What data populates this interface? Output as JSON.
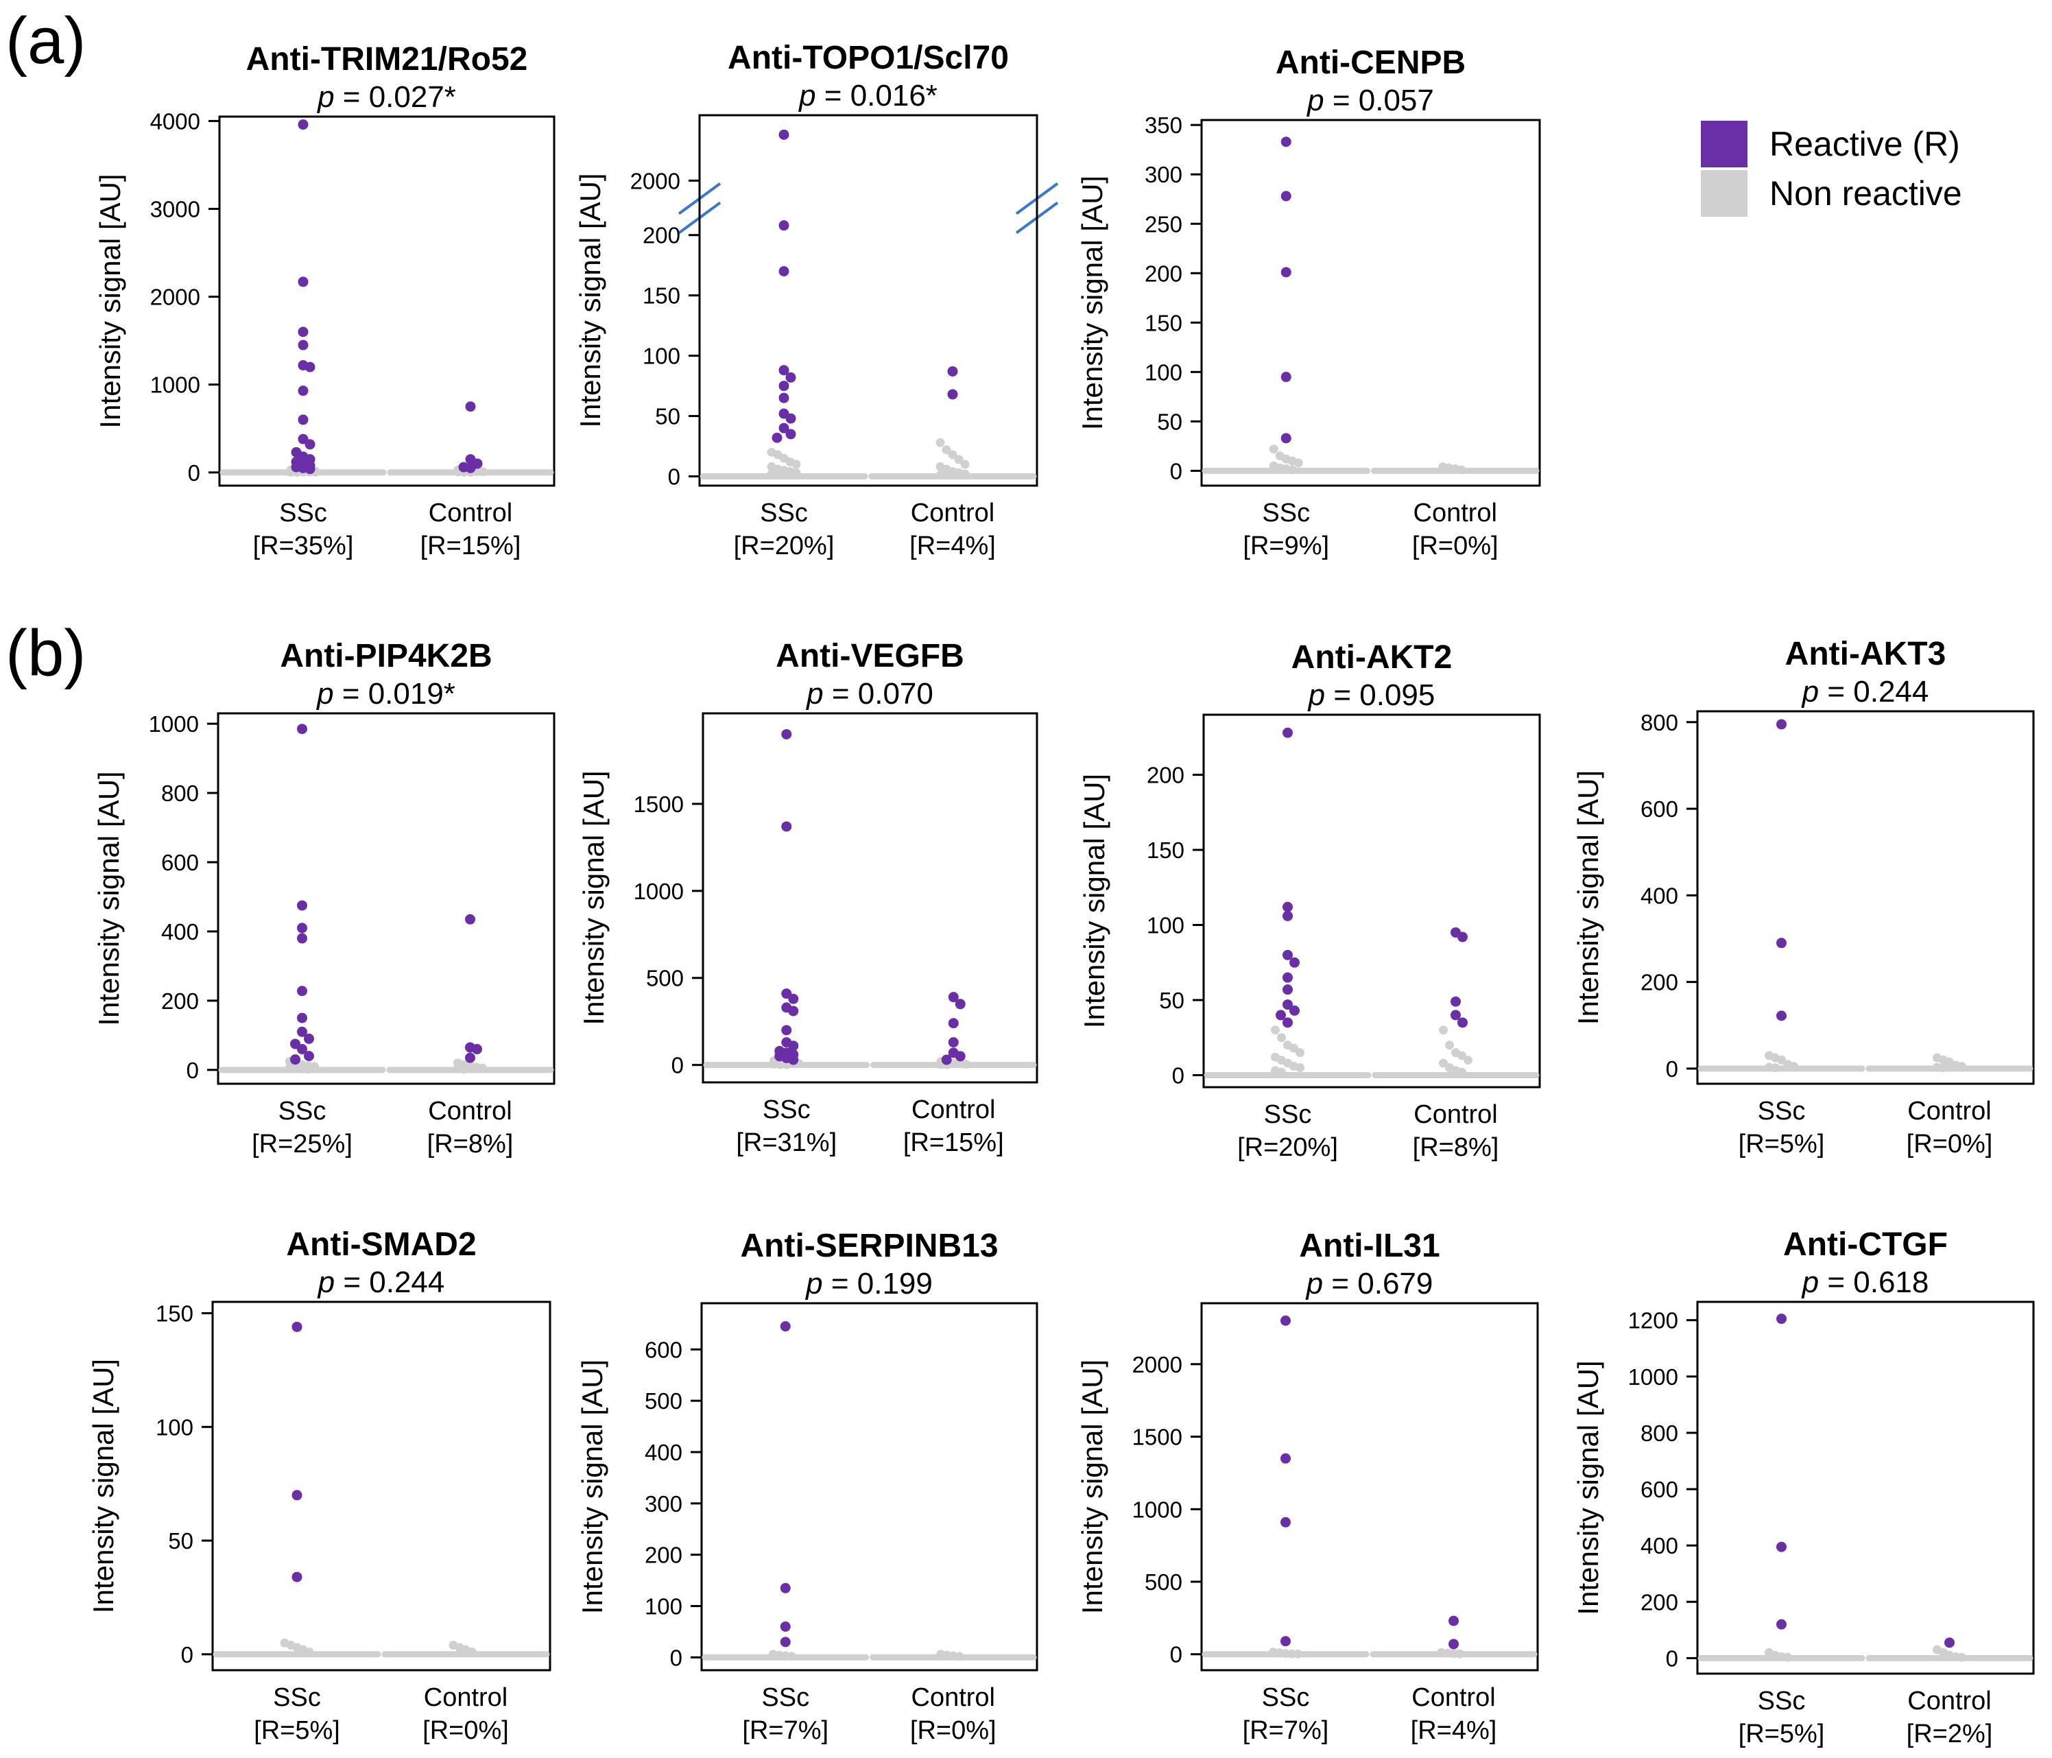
{
  "figure": {
    "panel_labels": [
      "(a)",
      "(b)"
    ],
    "legend": {
      "reactive_label": "Reactive (R)",
      "nonreactive_label": "Non reactive",
      "reactive_color": "#6a2fa6",
      "nonreactive_color": "#d0d0d0"
    }
  },
  "chart_data": [
    {
      "type": "scatter",
      "title": "Anti-TRIM21/Ro52",
      "p_label": "p",
      "p_value": "= 0.027*",
      "ylabel": "Intensity signal [AU]",
      "ylim": [
        -150,
        4050
      ],
      "yticks": [
        0,
        1000,
        2000,
        3000,
        4000
      ],
      "groups": [
        {
          "name": "SSc",
          "reactive_label": "[R=35%]",
          "reactive": [
            3960,
            2170,
            1600,
            1450,
            1220,
            1200,
            930,
            600,
            380,
            320,
            230,
            180,
            150,
            120,
            100,
            80,
            60,
            50,
            40
          ],
          "nonreactive": [
            30,
            25,
            20,
            15,
            12,
            10,
            8,
            6,
            5,
            4,
            3,
            2
          ]
        },
        {
          "name": "Control",
          "reactive_label": "[R=15%]",
          "reactive": [
            750,
            150,
            100,
            60,
            50
          ],
          "nonreactive": [
            30,
            20,
            15,
            10,
            8,
            5,
            4,
            3
          ]
        }
      ]
    },
    {
      "type": "scatter",
      "title": "Anti-TOPO1/Scl70",
      "p_label": "p",
      "p_value": "= 0.016*",
      "ylabel": "Intensity signal [AU]",
      "axis_break": true,
      "break_segments": [
        {
          "range": [
            0,
            210
          ],
          "ticks": [
            0,
            50,
            100,
            150,
            200
          ]
        },
        {
          "range": [
            1950,
            2220
          ],
          "ticks": [
            2000
          ]
        }
      ],
      "groups": [
        {
          "name": "SSc",
          "reactive_label": "[R=20%]",
          "reactive": [
            2180,
            208,
            170,
            88,
            82,
            75,
            65,
            52,
            48,
            40,
            35,
            32
          ],
          "nonreactive": [
            20,
            18,
            15,
            12,
            10,
            8,
            6,
            5,
            4,
            3,
            2,
            1
          ]
        },
        {
          "name": "Control",
          "reactive_label": "[R=4%]",
          "reactive": [
            87,
            68
          ],
          "nonreactive": [
            28,
            22,
            18,
            14,
            10,
            8,
            6,
            4,
            3,
            2,
            1
          ]
        }
      ]
    },
    {
      "type": "scatter",
      "title": "Anti-CENPB",
      "p_label": "p",
      "p_value": "= 0.057",
      "ylabel": "Intensity signal [AU]",
      "ylim": [
        -15,
        355
      ],
      "yticks": [
        0,
        50,
        100,
        150,
        200,
        250,
        300,
        350
      ],
      "groups": [
        {
          "name": "SSc",
          "reactive_label": "[R=9%]",
          "reactive": [
            333,
            278,
            201,
            95,
            33
          ],
          "nonreactive": [
            22,
            15,
            12,
            10,
            8,
            5,
            3,
            2,
            1
          ]
        },
        {
          "name": "Control",
          "reactive_label": "[R=0%]",
          "reactive": [],
          "nonreactive": [
            4,
            3,
            2,
            1
          ]
        }
      ]
    },
    {
      "type": "scatter",
      "title": "Anti-PIP4K2B",
      "p_label": "p",
      "p_value": "= 0.019*",
      "ylabel": "Intensity signal [AU]",
      "ylim": [
        -40,
        1030
      ],
      "yticks": [
        0,
        200,
        400,
        600,
        800,
        1000
      ],
      "groups": [
        {
          "name": "SSc",
          "reactive_label": "[R=25%]",
          "reactive": [
            985,
            475,
            410,
            380,
            228,
            150,
            110,
            90,
            75,
            60,
            40,
            30
          ],
          "nonreactive": [
            25,
            20,
            15,
            12,
            10,
            8,
            5,
            3,
            2
          ]
        },
        {
          "name": "Control",
          "reactive_label": "[R=8%]",
          "reactive": [
            435,
            65,
            60,
            35
          ],
          "nonreactive": [
            20,
            15,
            10,
            8,
            5,
            3,
            2
          ]
        }
      ]
    },
    {
      "type": "scatter",
      "title": "Anti-VEGFB",
      "p_label": "p",
      "p_value": "= 0.070",
      "ylabel": "Intensity signal [AU]",
      "ylim": [
        -100,
        2020
      ],
      "yticks": [
        0,
        500,
        1000,
        1500
      ],
      "groups": [
        {
          "name": "SSc",
          "reactive_label": "[R=31%]",
          "reactive": [
            1900,
            1370,
            410,
            380,
            330,
            310,
            200,
            130,
            110,
            80,
            70,
            60,
            50,
            40,
            30
          ],
          "nonreactive": [
            25,
            20,
            15,
            10,
            8,
            5,
            3,
            2
          ]
        },
        {
          "name": "Control",
          "reactive_label": "[R=15%]",
          "reactive": [
            390,
            350,
            240,
            130,
            70,
            50,
            30
          ],
          "nonreactive": [
            20,
            15,
            10,
            8,
            5,
            3,
            2
          ]
        }
      ]
    },
    {
      "type": "scatter",
      "title": "Anti-AKT2",
      "p_label": "p",
      "p_value": "= 0.095",
      "ylabel": "Intensity signal [AU]",
      "ylim": [
        -8,
        240
      ],
      "yticks": [
        0,
        50,
        100,
        150,
        200
      ],
      "groups": [
        {
          "name": "SSc",
          "reactive_label": "[R=20%]",
          "reactive": [
            228,
            112,
            106,
            80,
            75,
            65,
            57,
            47,
            43,
            40,
            35
          ],
          "nonreactive": [
            30,
            25,
            20,
            18,
            15,
            12,
            10,
            8,
            6,
            5,
            3,
            2
          ]
        },
        {
          "name": "Control",
          "reactive_label": "[R=8%]",
          "reactive": [
            95,
            92,
            49,
            40,
            35
          ],
          "nonreactive": [
            30,
            20,
            15,
            13,
            10,
            8,
            5,
            3,
            2
          ]
        }
      ]
    },
    {
      "type": "scatter",
      "title": "Anti-AKT3",
      "p_label": "p",
      "p_value": "= 0.244",
      "ylabel": "Intensity signal [AU]",
      "ylim": [
        -35,
        825
      ],
      "yticks": [
        0,
        200,
        400,
        600,
        800
      ],
      "groups": [
        {
          "name": "SSc",
          "reactive_label": "[R=5%]",
          "reactive": [
            795,
            290,
            122
          ],
          "nonreactive": [
            30,
            25,
            20,
            10,
            5,
            3,
            2
          ]
        },
        {
          "name": "Control",
          "reactive_label": "[R=0%]",
          "reactive": [],
          "nonreactive": [
            25,
            20,
            15,
            8,
            5,
            3,
            2
          ]
        }
      ]
    },
    {
      "type": "scatter",
      "title": "Anti-SMAD2",
      "p_label": "p",
      "p_value": "= 0.244",
      "ylabel": "Intensity signal [AU]",
      "ylim": [
        -7,
        155
      ],
      "yticks": [
        0,
        50,
        100,
        150
      ],
      "groups": [
        {
          "name": "SSc",
          "reactive_label": "[R=5%]",
          "reactive": [
            144,
            70,
            34
          ],
          "nonreactive": [
            5,
            4,
            3,
            2,
            1
          ]
        },
        {
          "name": "Control",
          "reactive_label": "[R=0%]",
          "reactive": [],
          "nonreactive": [
            4,
            3,
            2,
            1
          ]
        }
      ]
    },
    {
      "type": "scatter",
      "title": "Anti-SERPINB13",
      "p_label": "p",
      "p_value": "= 0.199",
      "ylabel": "Intensity signal [AU]",
      "ylim": [
        -25,
        690
      ],
      "yticks": [
        0,
        100,
        200,
        300,
        400,
        500,
        600
      ],
      "groups": [
        {
          "name": "SSc",
          "reactive_label": "[R=7%]",
          "reactive": [
            645,
            135,
            60,
            30
          ],
          "nonreactive": [
            6,
            4,
            3,
            2
          ]
        },
        {
          "name": "Control",
          "reactive_label": "[R=0%]",
          "reactive": [],
          "nonreactive": [
            6,
            4,
            3,
            2
          ]
        }
      ]
    },
    {
      "type": "scatter",
      "title": "Anti-IL31",
      "p_label": "p",
      "p_value": "= 0.679",
      "ylabel": "Intensity signal [AU]",
      "ylim": [
        -110,
        2420
      ],
      "yticks": [
        0,
        500,
        1000,
        1500,
        2000
      ],
      "groups": [
        {
          "name": "SSc",
          "reactive_label": "[R=7%]",
          "reactive": [
            2300,
            1350,
            910,
            90
          ],
          "nonreactive": [
            15,
            10,
            5,
            3,
            2
          ]
        },
        {
          "name": "Control",
          "reactive_label": "[R=4%]",
          "reactive": [
            230,
            70
          ],
          "nonreactive": [
            12,
            8,
            5,
            3
          ]
        }
      ]
    },
    {
      "type": "scatter",
      "title": "Anti-CTGF",
      "p_label": "p",
      "p_value": "= 0.618",
      "ylabel": "Intensity signal [AU]",
      "ylim": [
        -55,
        1265
      ],
      "yticks": [
        0,
        200,
        400,
        600,
        800,
        1000,
        1200
      ],
      "groups": [
        {
          "name": "SSc",
          "reactive_label": "[R=5%]",
          "reactive": [
            1205,
            395,
            120
          ],
          "nonreactive": [
            20,
            10,
            5,
            3
          ]
        },
        {
          "name": "Control",
          "reactive_label": "[R=2%]",
          "reactive": [
            55
          ],
          "nonreactive": [
            30,
            20,
            10,
            5,
            3
          ]
        }
      ]
    }
  ]
}
